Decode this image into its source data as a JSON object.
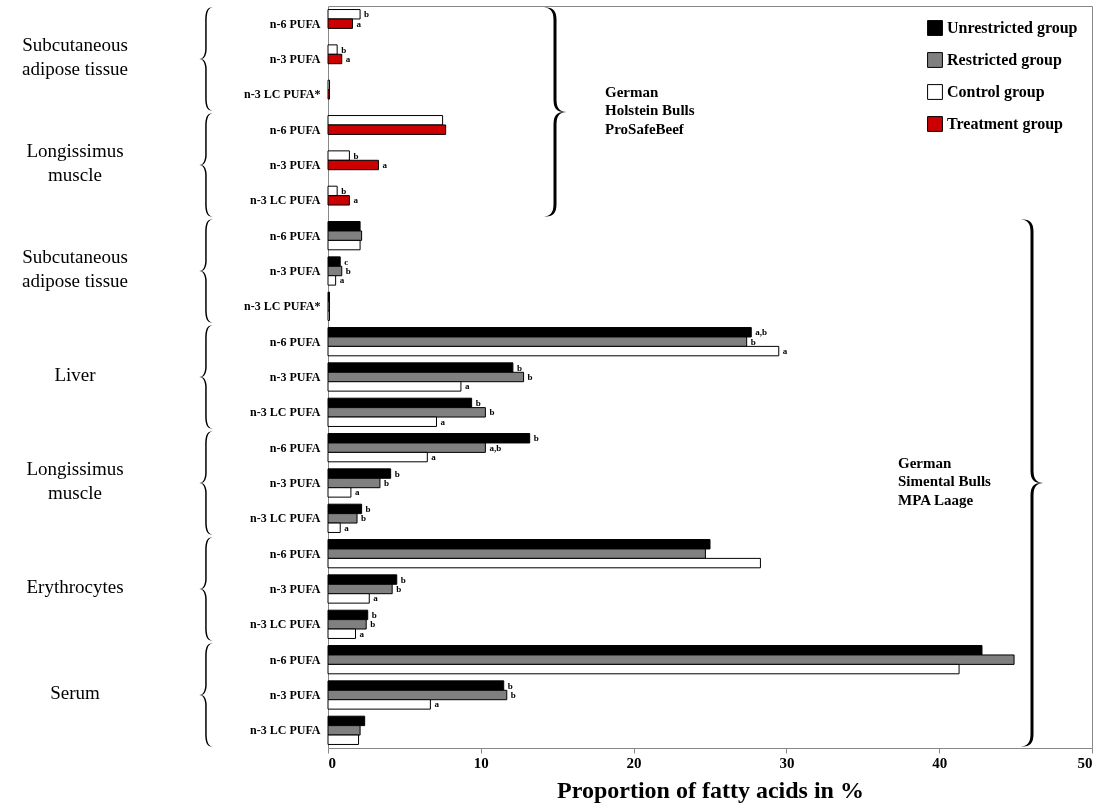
{
  "chart_data": {
    "type": "bar",
    "orientation": "horizontal",
    "xlabel": "Proportion of fatty acids in %",
    "categories": [
      "n-6 PUFA",
      "n-3 PUFA",
      "n-3 LC PUFA*",
      "n-6 PUFA",
      "n-3 PUFA",
      "n-3 LC PUFA",
      "n-6 PUFA",
      "n-3 PUFA",
      "n-3 LC PUFA*",
      "n-6 PUFA",
      "n-3 PUFA",
      "n-3 LC PUFA",
      "n-6 PUFA",
      "n-3 PUFA",
      "n-3 LC PUFA",
      "n-6 PUFA",
      "n-3 PUFA",
      "n-3 LC PUFA",
      "n-6 PUFA",
      "n-3 PUFA",
      "n-3 LC PUFA"
    ],
    "series": [
      {
        "name": "Unrestricted group",
        "color": "#000000",
        "values": [
          null,
          null,
          null,
          null,
          null,
          null,
          2.1,
          0.8,
          0.1,
          27.7,
          12.1,
          9.4,
          13.2,
          4.1,
          2.2,
          25.0,
          4.5,
          2.6,
          42.8,
          11.5,
          2.4
        ],
        "value_labels": [
          null,
          null,
          null,
          null,
          null,
          null,
          null,
          "c",
          null,
          "a,b",
          "b",
          "b",
          "b",
          "b",
          "b",
          null,
          "b",
          "b",
          null,
          "b",
          null
        ]
      },
      {
        "name": "Restricted group",
        "color": "#808080",
        "values": [
          null,
          null,
          null,
          null,
          null,
          null,
          2.2,
          0.9,
          0.1,
          27.4,
          12.8,
          10.3,
          10.3,
          3.4,
          1.9,
          24.7,
          4.2,
          2.5,
          44.9,
          11.7,
          2.1
        ],
        "value_labels": [
          null,
          null,
          null,
          null,
          null,
          null,
          null,
          "b",
          null,
          "b",
          "b",
          "b",
          "a,b",
          "b",
          "b",
          null,
          "b",
          "b",
          null,
          "b",
          null
        ]
      },
      {
        "name": "Control group",
        "color": "#ffffff",
        "values": [
          2.1,
          0.6,
          0.1,
          7.5,
          1.4,
          0.6,
          2.1,
          0.5,
          0.1,
          29.5,
          8.7,
          7.1,
          6.5,
          1.5,
          0.8,
          28.3,
          2.7,
          1.8,
          41.3,
          6.7,
          2.0
        ],
        "value_labels": [
          "b",
          "b",
          null,
          null,
          "b",
          "b",
          null,
          "a",
          null,
          "a",
          "a",
          "a",
          "a",
          "a",
          "a",
          null,
          "a",
          "a",
          null,
          "a",
          null
        ]
      },
      {
        "name": "Treatment group",
        "color": "#cc0000",
        "values": [
          1.6,
          0.9,
          0.1,
          7.7,
          3.3,
          1.4,
          null,
          null,
          null,
          null,
          null,
          null,
          null,
          null,
          null,
          null,
          null,
          null,
          null,
          null,
          null
        ],
        "value_labels": [
          "a",
          "a",
          null,
          null,
          "a",
          "a",
          null,
          null,
          null,
          null,
          null,
          null,
          null,
          null,
          null,
          null,
          null,
          null,
          null,
          null,
          null
        ]
      }
    ],
    "xlim": [
      0,
      50
    ],
    "xticks": [
      0,
      10,
      20,
      30,
      40,
      50
    ],
    "legend": "top right",
    "annotations": [
      "Subcutaneous adipose tissue",
      "Longissimus muscle",
      "Subcutaneous adipose tissue",
      "Liver",
      "Longissimus muscle",
      "Erythrocytes",
      "Serum",
      "German Holstein Bulls ProSafeBeef",
      "German Simental Bulls MPA Laage"
    ]
  }
}
